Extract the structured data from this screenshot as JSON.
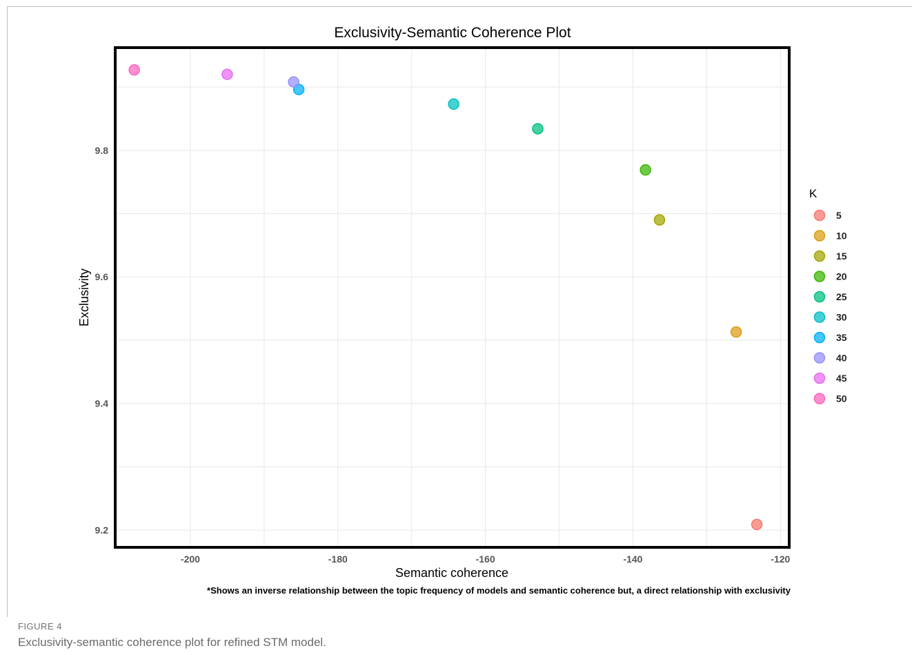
{
  "figure": {
    "label": "FIGURE 4",
    "caption": "Exclusivity-semantic coherence plot for refined STM model."
  },
  "chart_data": {
    "type": "scatter",
    "title": "Exclusivity-Semantic Coherence Plot",
    "xlabel": "Semantic coherence",
    "ylabel": "Exclusivity",
    "xlim": [
      -210,
      -119
    ],
    "ylim": [
      9.175,
      9.96
    ],
    "x_ticks": [
      -200,
      -180,
      -160,
      -140,
      -120
    ],
    "y_ticks": [
      9.2,
      9.4,
      9.6,
      9.8
    ],
    "x_tick_labels": [
      "-200",
      "-180",
      "-160",
      "-140",
      "-120"
    ],
    "y_tick_labels": [
      "9.2",
      "9.4",
      "9.6",
      "9.8"
    ],
    "grid": true,
    "legend_title": "K",
    "legend_position": "right",
    "footnote": "*Shows an inverse relationship between the topic frequency of models and semantic coherence but, a direct relationship with exclusivity",
    "points": [
      {
        "k": "5",
        "x": -123.2,
        "y": 9.209,
        "color": "#F8766D"
      },
      {
        "k": "10",
        "x": -126.0,
        "y": 9.513,
        "color": "#DB9D12"
      },
      {
        "k": "15",
        "x": -136.4,
        "y": 9.69,
        "color": "#A3A500"
      },
      {
        "k": "20",
        "x": -138.3,
        "y": 9.769,
        "color": "#39B600"
      },
      {
        "k": "25",
        "x": -152.9,
        "y": 9.834,
        "color": "#00BF7D"
      },
      {
        "k": "30",
        "x": -164.3,
        "y": 9.873,
        "color": "#00BFC4"
      },
      {
        "k": "35",
        "x": -185.3,
        "y": 9.896,
        "color": "#00B0F6"
      },
      {
        "k": "40",
        "x": -186.0,
        "y": 9.908,
        "color": "#9590FF"
      },
      {
        "k": "45",
        "x": -195.0,
        "y": 9.92,
        "color": "#E76BF3"
      },
      {
        "k": "50",
        "x": -207.6,
        "y": 9.927,
        "color": "#FF62BC"
      }
    ]
  }
}
